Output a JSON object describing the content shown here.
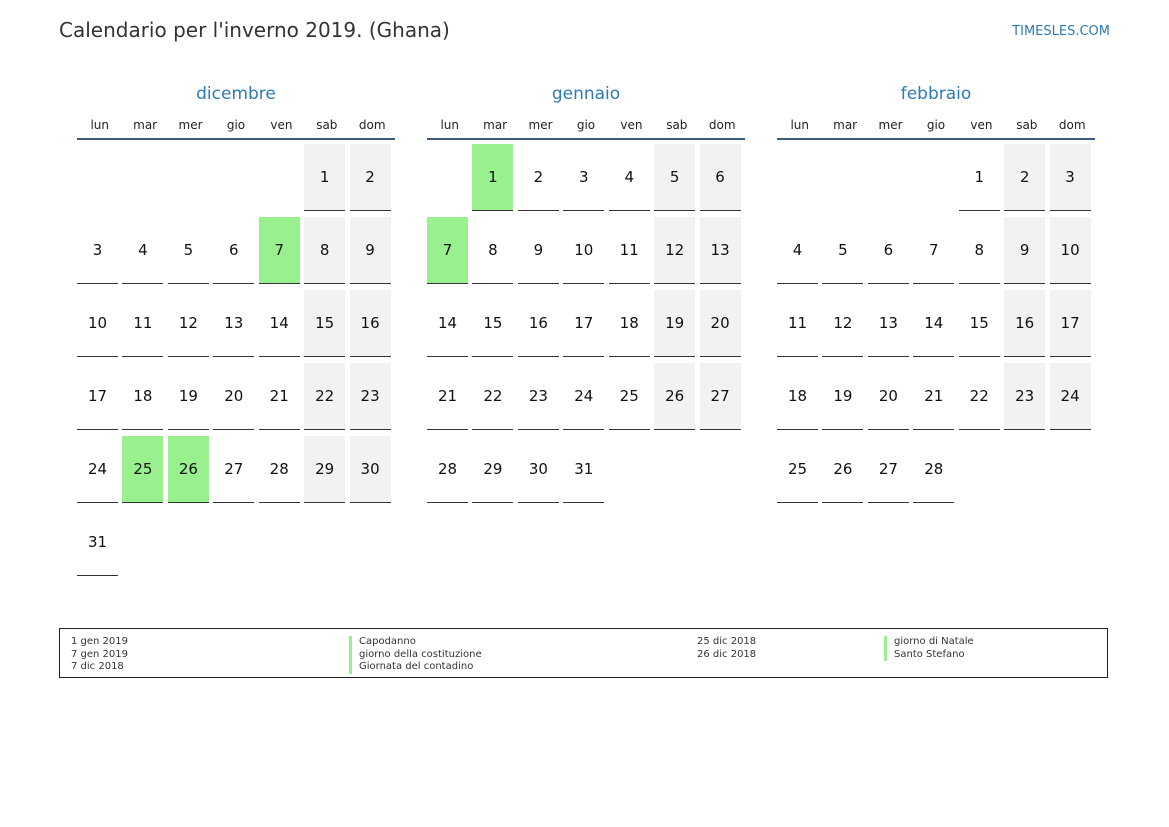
{
  "header": {
    "title": "Calendario per l'inverno 2019. (Ghana)",
    "brand": "TIMESLES.COM"
  },
  "weekdays": [
    "lun",
    "mar",
    "mer",
    "gio",
    "ven",
    "sab",
    "dom"
  ],
  "months": [
    {
      "name": "dicembre",
      "start_weekday": 5,
      "days": 31,
      "holidays": [
        7,
        25,
        26
      ]
    },
    {
      "name": "gennaio",
      "start_weekday": 1,
      "days": 31,
      "holidays": [
        1,
        7
      ]
    },
    {
      "name": "febbraio",
      "start_weekday": 4,
      "days": 28,
      "holidays": []
    }
  ],
  "legend": {
    "left": [
      {
        "date": "1 gen 2019",
        "name": "Capodanno"
      },
      {
        "date": "7 gen 2019",
        "name": "giorno della costituzione"
      },
      {
        "date": "7 dic 2018",
        "name": "Giornata del contadino"
      }
    ],
    "right": [
      {
        "date": "25 dic 2018",
        "name": "giorno di Natale"
      },
      {
        "date": "26 dic 2018",
        "name": "Santo Stefano"
      }
    ]
  },
  "colors": {
    "accent": "#2e7ab6",
    "holiday": "#99f08f",
    "weekend": "#f2f2f2"
  }
}
